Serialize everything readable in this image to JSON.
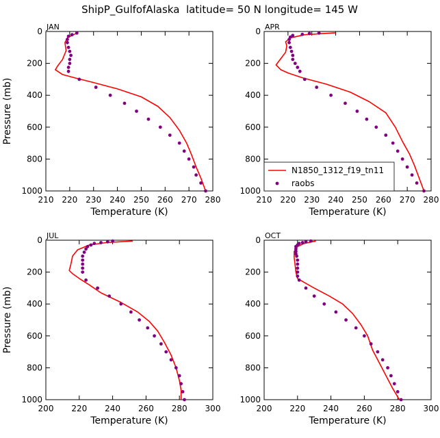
{
  "figure_title": "ShipP_GulfofAlaska  latitude= 50 N longitude= 145 W",
  "colors": {
    "model": "#ff0000",
    "raobs": "#800080",
    "axes": "#000000"
  },
  "legend": {
    "placement": "lower-left of APR panel",
    "entries": [
      "N1850_1312_f19_tn11",
      "raobs"
    ]
  },
  "chart_data": [
    {
      "type": "line+scatter",
      "panel": "JAN",
      "xlabel": "Temperature (K)",
      "ylabel": "Pressure (mb)",
      "xlim": [
        210,
        280
      ],
      "ylim": [
        1000,
        0
      ],
      "xticks": [
        210,
        220,
        230,
        240,
        250,
        260,
        270,
        280
      ],
      "yticks": [
        0,
        200,
        400,
        600,
        800,
        1000
      ],
      "series": [
        {
          "name": "N1850_1312_f19_tn11",
          "kind": "line",
          "points": [
            [
              223,
              10
            ],
            [
              219,
              40
            ],
            [
              218,
              70
            ],
            [
              218.5,
              120
            ],
            [
              217,
              175
            ],
            [
              215,
              215
            ],
            [
              214,
              240
            ],
            [
              217,
              270
            ],
            [
              222,
              290
            ],
            [
              230,
              320
            ],
            [
              240,
              360
            ],
            [
              250,
              410
            ],
            [
              257,
              470
            ],
            [
              262,
              540
            ],
            [
              266,
              620
            ],
            [
              269,
              700
            ],
            [
              271,
              770
            ],
            [
              273,
              850
            ],
            [
              275,
              920
            ],
            [
              277,
              1000
            ]
          ]
        },
        {
          "name": "raobs",
          "kind": "scatter",
          "points": [
            [
              223,
              10
            ],
            [
              221,
              20
            ],
            [
              219.5,
              30
            ],
            [
              219,
              50
            ],
            [
              219,
              70
            ],
            [
              219.5,
              100
            ],
            [
              220,
              125
            ],
            [
              220.5,
              150
            ],
            [
              220,
              175
            ],
            [
              220,
              200
            ],
            [
              219.5,
              225
            ],
            [
              219.5,
              250
            ],
            [
              224,
              300
            ],
            [
              231,
              350
            ],
            [
              237,
              400
            ],
            [
              243,
              450
            ],
            [
              248,
              500
            ],
            [
              253,
              550
            ],
            [
              258,
              600
            ],
            [
              262,
              650
            ],
            [
              266,
              700
            ],
            [
              268,
              750
            ],
            [
              270,
              800
            ],
            [
              272,
              850
            ],
            [
              273,
              900
            ],
            [
              275,
              950
            ],
            [
              277,
              1000
            ]
          ]
        }
      ]
    },
    {
      "type": "line+scatter",
      "panel": "APR",
      "xlabel": "Temperature (K)",
      "ylabel": "",
      "xlim": [
        210,
        280
      ],
      "ylim": [
        1000,
        0
      ],
      "xticks": [
        210,
        220,
        230,
        240,
        250,
        260,
        270,
        280
      ],
      "yticks": [
        0,
        200,
        400,
        600,
        800,
        1000
      ],
      "series": [
        {
          "name": "N1850_1312_f19_tn11",
          "kind": "line",
          "points": [
            [
              240,
              8
            ],
            [
              227,
              20
            ],
            [
              221,
              40
            ],
            [
              219,
              65
            ],
            [
              219.5,
              90
            ],
            [
              219,
              130
            ],
            [
              217,
              170
            ],
            [
              215,
              210
            ],
            [
              217,
              240
            ],
            [
              220,
              260
            ],
            [
              226,
              290
            ],
            [
              236,
              330
            ],
            [
              246,
              380
            ],
            [
              254,
              440
            ],
            [
              261,
              510
            ],
            [
              265,
              600
            ],
            [
              268,
              690
            ],
            [
              271,
              770
            ],
            [
              273,
              840
            ],
            [
              275,
              920
            ],
            [
              277,
              1000
            ]
          ]
        },
        {
          "name": "raobs",
          "kind": "scatter",
          "points": [
            [
              233,
              10
            ],
            [
              229,
              13
            ],
            [
              226,
              18
            ],
            [
              222,
              25
            ],
            [
              221,
              35
            ],
            [
              220.5,
              50
            ],
            [
              220.5,
              70
            ],
            [
              221,
              100
            ],
            [
              221.5,
              125
            ],
            [
              222,
              150
            ],
            [
              222,
              175
            ],
            [
              223,
              200
            ],
            [
              224,
              225
            ],
            [
              225,
              250
            ],
            [
              227,
              300
            ],
            [
              232,
              350
            ],
            [
              238,
              400
            ],
            [
              244,
              450
            ],
            [
              249,
              500
            ],
            [
              253,
              550
            ],
            [
              257,
              600
            ],
            [
              261,
              650
            ],
            [
              264,
              700
            ],
            [
              266,
              750
            ],
            [
              268,
              800
            ],
            [
              270,
              850
            ],
            [
              272,
              900
            ],
            [
              274,
              950
            ],
            [
              277,
              1000
            ]
          ]
        }
      ]
    },
    {
      "type": "line+scatter",
      "panel": "JUL",
      "xlabel": "Temperature (K)",
      "ylabel": "Pressure (mb)",
      "xlim": [
        200,
        300
      ],
      "ylim": [
        1000,
        0
      ],
      "xticks": [
        200,
        220,
        240,
        260,
        280,
        300
      ],
      "yticks": [
        0,
        200,
        400,
        600,
        800,
        1000
      ],
      "series": [
        {
          "name": "N1850_1312_f19_tn11",
          "kind": "line",
          "points": [
            [
              252,
              5
            ],
            [
              236,
              15
            ],
            [
              226,
              30
            ],
            [
              219,
              60
            ],
            [
              216,
              100
            ],
            [
              215,
              150
            ],
            [
              214,
              190
            ],
            [
              216,
              210
            ],
            [
              220,
              240
            ],
            [
              226,
              280
            ],
            [
              233,
              330
            ],
            [
              245,
              390
            ],
            [
              255,
              450
            ],
            [
              262,
              510
            ],
            [
              267,
              570
            ],
            [
              271,
              640
            ],
            [
              275,
              720
            ],
            [
              278,
              800
            ],
            [
              280,
              880
            ],
            [
              281,
              940
            ],
            [
              281,
              1000
            ]
          ]
        },
        {
          "name": "raobs",
          "kind": "scatter",
          "points": [
            [
              240,
              5
            ],
            [
              237,
              10
            ],
            [
              233,
              15
            ],
            [
              229,
              20
            ],
            [
              227,
              30
            ],
            [
              225,
              40
            ],
            [
              224,
              55
            ],
            [
              223,
              75
            ],
            [
              222,
              100
            ],
            [
              222,
              125
            ],
            [
              222,
              150
            ],
            [
              222,
              175
            ],
            [
              222,
              200
            ],
            [
              224,
              250
            ],
            [
              231,
              300
            ],
            [
              238,
              350
            ],
            [
              245,
              400
            ],
            [
              251,
              450
            ],
            [
              256,
              500
            ],
            [
              261,
              550
            ],
            [
              265,
              600
            ],
            [
              269,
              650
            ],
            [
              272,
              700
            ],
            [
              275,
              750
            ],
            [
              278,
              800
            ],
            [
              280,
              850
            ],
            [
              281,
              900
            ],
            [
              282,
              950
            ],
            [
              283,
              1000
            ]
          ]
        }
      ]
    },
    {
      "type": "line+scatter",
      "panel": "OCT",
      "xlabel": "Temperature (K)",
      "ylabel": "",
      "xlim": [
        200,
        300
      ],
      "ylim": [
        1000,
        0
      ],
      "xticks": [
        200,
        220,
        240,
        260,
        280,
        300
      ],
      "yticks": [
        0,
        200,
        400,
        600,
        800,
        1000
      ],
      "series": [
        {
          "name": "N1850_1312_f19_tn11",
          "kind": "line",
          "points": [
            [
              231,
              5
            ],
            [
              224,
              20
            ],
            [
              220,
              40
            ],
            [
              218,
              70
            ],
            [
              218,
              110
            ],
            [
              218.5,
              150
            ],
            [
              219,
              200
            ],
            [
              220,
              240
            ],
            [
              224,
              265
            ],
            [
              230,
              300
            ],
            [
              239,
              350
            ],
            [
              247,
              400
            ],
            [
              253,
              460
            ],
            [
              258,
              530
            ],
            [
              262,
              600
            ],
            [
              265,
              690
            ],
            [
              269,
              770
            ],
            [
              273,
              850
            ],
            [
              277,
              930
            ],
            [
              281,
              1000
            ]
          ]
        },
        {
          "name": "raobs",
          "kind": "scatter",
          "points": [
            [
              228,
              5
            ],
            [
              225,
              10
            ],
            [
              223,
              15
            ],
            [
              221,
              20
            ],
            [
              220,
              30
            ],
            [
              219,
              40
            ],
            [
              219,
              55
            ],
            [
              219,
              70
            ],
            [
              219,
              85
            ],
            [
              219.5,
              100
            ],
            [
              220,
              125
            ],
            [
              220,
              150
            ],
            [
              220,
              175
            ],
            [
              220,
              200
            ],
            [
              220,
              225
            ],
            [
              221,
              250
            ],
            [
              225,
              300
            ],
            [
              230,
              350
            ],
            [
              236,
              400
            ],
            [
              243,
              450
            ],
            [
              249,
              500
            ],
            [
              255,
              550
            ],
            [
              260,
              600
            ],
            [
              264,
              650
            ],
            [
              268,
              700
            ],
            [
              271,
              750
            ],
            [
              274,
              800
            ],
            [
              276,
              850
            ],
            [
              278,
              900
            ],
            [
              280,
              950
            ],
            [
              282,
              1000
            ]
          ]
        }
      ]
    }
  ]
}
